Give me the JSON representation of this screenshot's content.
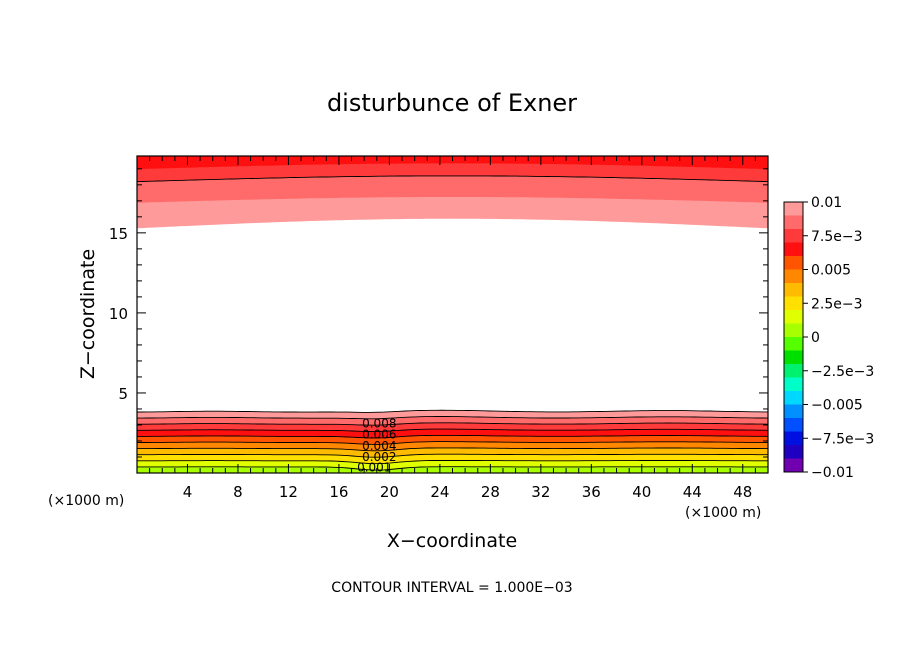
{
  "chart_data": {
    "type": "heatmap",
    "title": "disturbunce of Exner",
    "xlabel": "X−coordinate",
    "ylabel": "Z−coordinate",
    "x_unit_left": "(×1000 m)",
    "x_unit_right": "(×1000 m)",
    "xlim": [
      0,
      50
    ],
    "ylim": [
      0,
      19.8
    ],
    "x_ticks": [
      {
        "v": 4,
        "label": "4"
      },
      {
        "v": 8,
        "label": "8"
      },
      {
        "v": 12,
        "label": "12"
      },
      {
        "v": 16,
        "label": "16"
      },
      {
        "v": 20,
        "label": "20"
      },
      {
        "v": 24,
        "label": "24"
      },
      {
        "v": 28,
        "label": "28"
      },
      {
        "v": 32,
        "label": "32"
      },
      {
        "v": 36,
        "label": "36"
      },
      {
        "v": 40,
        "label": "40"
      },
      {
        "v": 44,
        "label": "44"
      },
      {
        "v": 48,
        "label": "48"
      }
    ],
    "y_ticks": [
      {
        "v": 5,
        "label": "5"
      },
      {
        "v": 10,
        "label": "10"
      },
      {
        "v": 15,
        "label": "15"
      }
    ],
    "contour_interval": 0.001,
    "contour_labels": [
      {
        "text": "0.008",
        "x": 19.2,
        "z": 3.1
      },
      {
        "text": "0.006",
        "x": 19.2,
        "z": 2.4
      },
      {
        "text": "0.004",
        "x": 19.2,
        "z": 1.7
      },
      {
        "text": "0.002",
        "x": 19.2,
        "z": 1.0
      },
      {
        "text": "0.001",
        "x": 18.8,
        "z": 0.35
      }
    ],
    "colorbar": {
      "range": [
        -0.01,
        0.01
      ],
      "labels": [
        "0.01",
        "7.5e−3",
        "0.005",
        "2.5e−3",
        "0",
        "−2.5e−3",
        "−0.005",
        "−7.5e−3",
        "−0.01"
      ],
      "bins_top_to_bottom": [
        "#ff9a9a",
        "#ff6a6a",
        "#ff3a3a",
        "#ff0f0f",
        "#ff5500",
        "#ff8800",
        "#ffbb00",
        "#ffe000",
        "#e0ff00",
        "#a8ff00",
        "#55ff00",
        "#00e000",
        "#00f070",
        "#00ffc8",
        "#00d8ff",
        "#0090ff",
        "#0050ff",
        "#0010e0",
        "#2000c0",
        "#7000b0"
      ]
    }
  },
  "footer": {
    "contour_interval_text": "CONTOUR INTERVAL = 1.000E−03"
  }
}
